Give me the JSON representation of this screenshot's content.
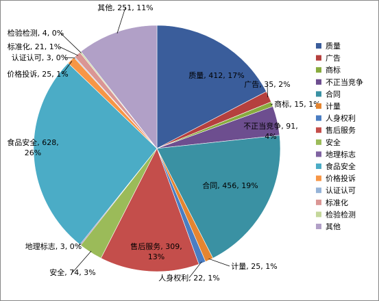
{
  "chart_data": {
    "type": "pie",
    "title": "",
    "slices": [
      {
        "name": "质量",
        "value": 412,
        "percent": "17%",
        "color": "#3A5D9B"
      },
      {
        "name": "广告",
        "value": 35,
        "percent": "2%",
        "color": "#B5403E"
      },
      {
        "name": "商标",
        "value": 15,
        "percent": "1%",
        "color": "#88AB3E"
      },
      {
        "name": "不正当竞争",
        "value": 91,
        "percent": "4%",
        "color": "#6D4E8F"
      },
      {
        "name": "合同",
        "value": 456,
        "percent": "19%",
        "color": "#3A91A3"
      },
      {
        "name": "计量",
        "value": 25,
        "percent": "1%",
        "color": "#E58530"
      },
      {
        "name": "人身权利",
        "value": 22,
        "percent": "1%",
        "color": "#4A7DC2"
      },
      {
        "name": "售后服务",
        "value": 309,
        "percent": "13%",
        "color": "#C44E4B"
      },
      {
        "name": "安全",
        "value": 74,
        "percent": "3%",
        "color": "#9BBB59"
      },
      {
        "name": "地理标志",
        "value": 3,
        "percent": "0%",
        "color": "#7F63A1"
      },
      {
        "name": "食品安全",
        "value": 628,
        "percent": "26%",
        "color": "#4BACC6"
      },
      {
        "name": "价格投诉",
        "value": 25,
        "percent": "1%",
        "color": "#F79646"
      },
      {
        "name": "认证认可",
        "value": 3,
        "percent": "0%",
        "color": "#95B3D7"
      },
      {
        "name": "标准化",
        "value": 21,
        "percent": "1%",
        "color": "#DA9694"
      },
      {
        "name": "检验检测",
        "value": 4,
        "percent": "0%",
        "color": "#C4D79B"
      },
      {
        "name": "其他",
        "value": 251,
        "percent": "11%",
        "color": "#B1A0C7"
      }
    ],
    "labels": [
      {
        "line1": "质量, 412, 17%",
        "line2": ""
      },
      {
        "line1": "广告, 35, 2%",
        "line2": ""
      },
      {
        "line1": "商标, 15, 1%",
        "line2": ""
      },
      {
        "line1": "不正当竞争, 91,",
        "line2": "4%"
      },
      {
        "line1": "合同, 456, 19%",
        "line2": ""
      },
      {
        "line1": "计量, 25, 1%",
        "line2": ""
      },
      {
        "line1": "人身权利, 22, 1%",
        "line2": ""
      },
      {
        "line1": "售后服务, 309,",
        "line2": "13%"
      },
      {
        "line1": "安全, 74, 3%",
        "line2": ""
      },
      {
        "line1": "地理标志, 3, 0%",
        "line2": ""
      },
      {
        "line1": "食品安全, 628,",
        "line2": "26%"
      },
      {
        "line1": "价格投诉, 25, 1%",
        "line2": ""
      },
      {
        "line1": "认证认可, 3, 0%",
        "line2": ""
      },
      {
        "line1": "标准化, 21, 1%",
        "line2": ""
      },
      {
        "line1": "检验检测, 4, 0%",
        "line2": ""
      },
      {
        "line1": "其他, 251, 11%",
        "line2": ""
      }
    ],
    "legend_position": "right"
  }
}
